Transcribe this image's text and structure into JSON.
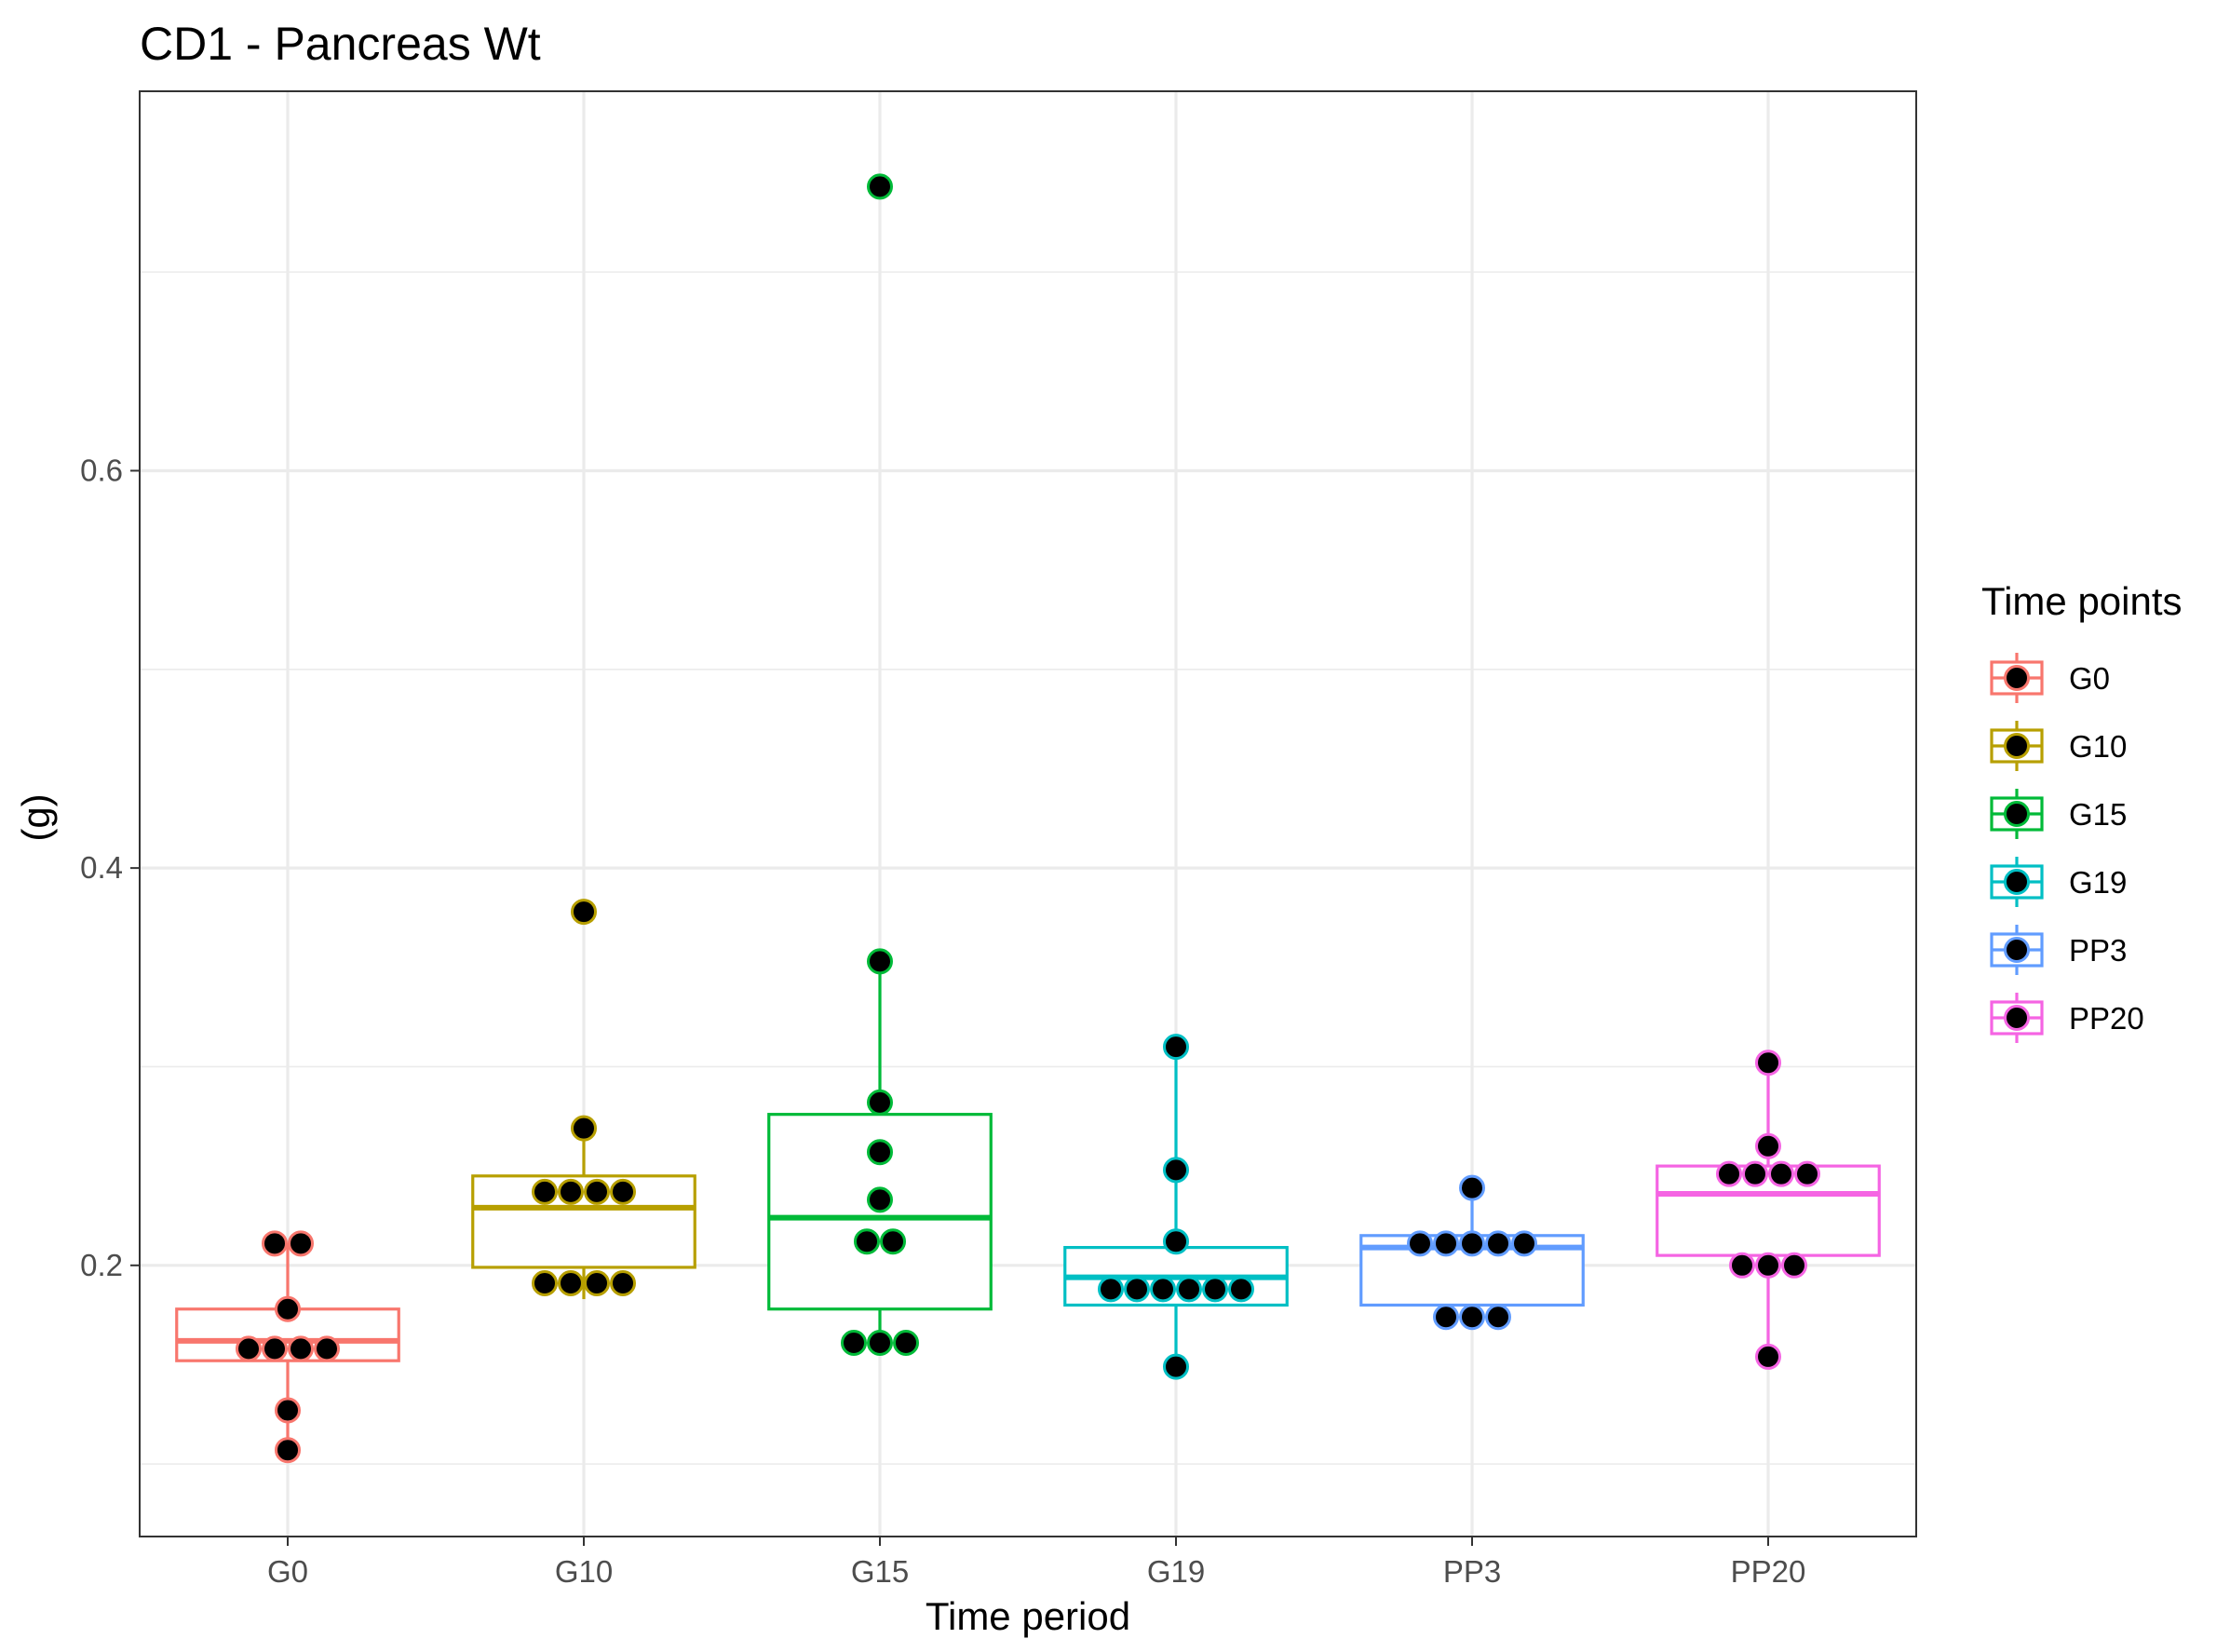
{
  "chart_data": {
    "type": "box",
    "title": "CD1 - Pancreas Wt",
    "xlabel": "Time period",
    "ylabel": "(g)",
    "categories": [
      "G0",
      "G10",
      "G15",
      "G19",
      "PP3",
      "PP20"
    ],
    "ylim": [
      0.0635,
      0.791
    ],
    "yticks": [
      0.2,
      0.4,
      0.6
    ],
    "ytick_labels": [
      "0.2",
      "0.4",
      "0.6"
    ],
    "grid": true,
    "legend": {
      "title": "Time points",
      "position": "right",
      "entries": [
        "G0",
        "G10",
        "G15",
        "G19",
        "PP3",
        "PP20"
      ]
    },
    "colors": [
      "#F8766D",
      "#B79F00",
      "#00BA38",
      "#00BFC4",
      "#619CFF",
      "#F564E3"
    ],
    "point_fill": "#000000",
    "series": [
      {
        "category": "G0",
        "q1": 0.152,
        "median": 0.162,
        "q3": 0.178,
        "whisker_low": 0.107,
        "whisker_high": 0.211,
        "points": [
          0.211,
          0.211,
          0.178,
          0.158,
          0.158,
          0.158,
          0.158,
          0.127,
          0.107
        ]
      },
      {
        "category": "G10",
        "q1": 0.199,
        "median": 0.229,
        "q3": 0.245,
        "whisker_low": 0.183,
        "whisker_high": 0.269,
        "points": [
          0.378,
          0.269,
          0.237,
          0.237,
          0.237,
          0.237,
          0.191,
          0.191,
          0.191,
          0.191
        ]
      },
      {
        "category": "G15",
        "q1": 0.178,
        "median": 0.224,
        "q3": 0.276,
        "whisker_low": 0.161,
        "whisker_high": 0.353,
        "points": [
          0.743,
          0.353,
          0.282,
          0.257,
          0.233,
          0.212,
          0.212,
          0.161,
          0.161,
          0.161
        ]
      },
      {
        "category": "G19",
        "q1": 0.18,
        "median": 0.194,
        "q3": 0.209,
        "whisker_low": 0.149,
        "whisker_high": 0.31,
        "points": [
          0.31,
          0.248,
          0.212,
          0.188,
          0.188,
          0.188,
          0.188,
          0.188,
          0.188,
          0.149
        ]
      },
      {
        "category": "PP3",
        "q1": 0.18,
        "median": 0.209,
        "q3": 0.215,
        "whisker_low": 0.174,
        "whisker_high": 0.239,
        "points": [
          0.239,
          0.211,
          0.211,
          0.211,
          0.211,
          0.211,
          0.174,
          0.174,
          0.174
        ]
      },
      {
        "category": "PP20",
        "q1": 0.205,
        "median": 0.236,
        "q3": 0.25,
        "whisker_low": 0.154,
        "whisker_high": 0.302,
        "points": [
          0.302,
          0.26,
          0.246,
          0.246,
          0.246,
          0.246,
          0.2,
          0.2,
          0.2,
          0.154
        ]
      }
    ]
  }
}
